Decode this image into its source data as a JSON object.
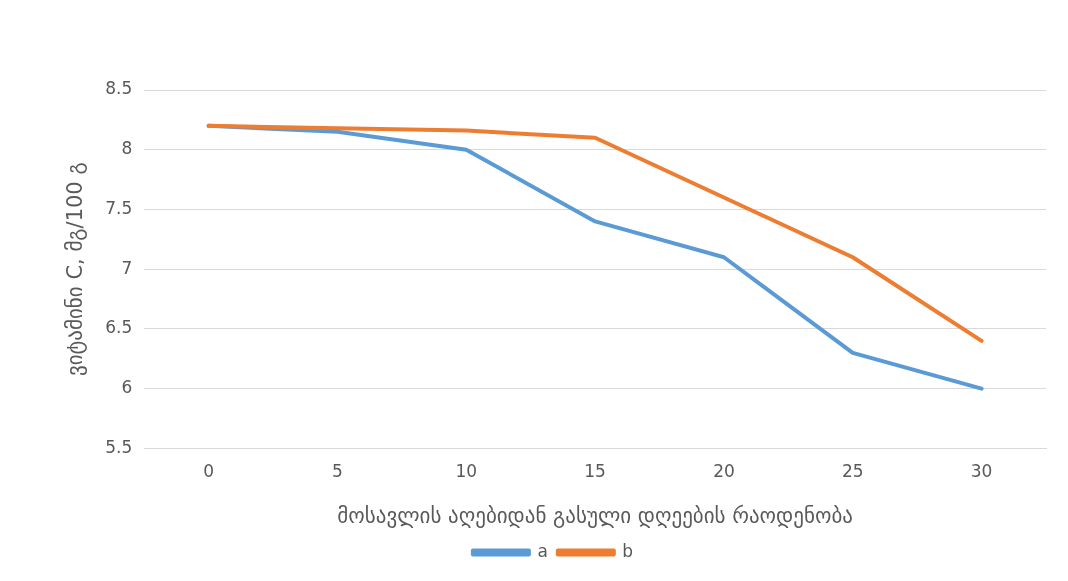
{
  "chart_data": {
    "type": "line",
    "xlabel": "მოსავლის აღებიდან გასული დღეების რაოდენობა",
    "ylabel": "ვიტამინი C, მგ/100 გ",
    "categories": [
      "0",
      "5",
      "10",
      "15",
      "20",
      "25",
      "30"
    ],
    "series": [
      {
        "name": "a",
        "color": "#5b9bd5",
        "values": [
          8.2,
          8.15,
          8.0,
          7.4,
          7.1,
          6.3,
          6.0
        ]
      },
      {
        "name": "b",
        "color": "#ed7d31",
        "values": [
          8.2,
          8.18,
          8.16,
          8.1,
          7.6,
          7.1,
          6.4
        ]
      }
    ],
    "ylim": [
      5.5,
      8.5
    ],
    "yticks": [
      5.5,
      6,
      6.5,
      7,
      7.5,
      8,
      8.5
    ],
    "grid": "y",
    "legend": "bottom",
    "marker": "none",
    "line_style": "solid"
  }
}
